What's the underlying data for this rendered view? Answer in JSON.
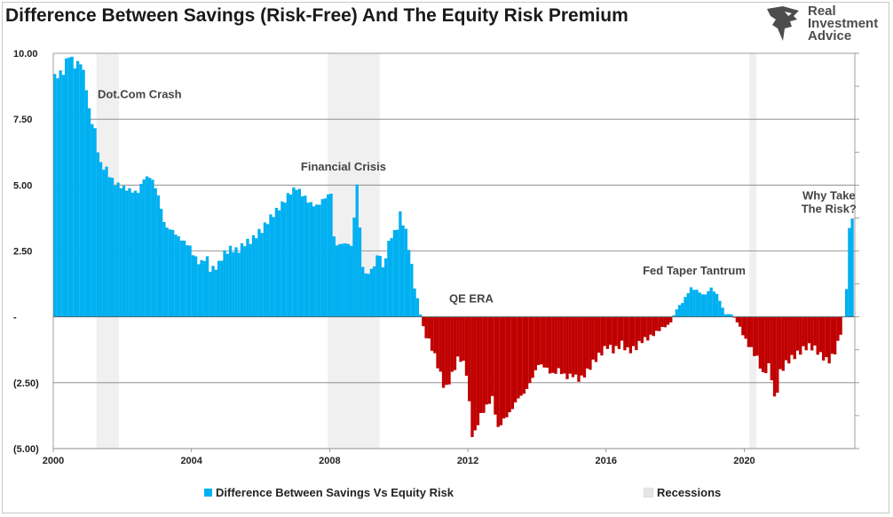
{
  "title": "Difference Between Savings (Risk-Free) And The Equity Risk Premium",
  "logo": {
    "lines": [
      "Real",
      "Investment",
      "Advice"
    ]
  },
  "colors": {
    "positive": "#00B0F0",
    "negative": "#C00000",
    "recession": "#e6e6e6",
    "gridline": "#7f7f7f"
  },
  "chart_data": {
    "type": "bar",
    "title": "Difference Between Savings (Risk-Free) And The Equity Risk Premium",
    "xlabel": "",
    "ylabel": "",
    "xlim": [
      2000.0,
      2023.2
    ],
    "ylim": [
      -5,
      10
    ],
    "y_ticks": [
      {
        "value": 10,
        "label": "10.00"
      },
      {
        "value": 7.5,
        "label": "7.50"
      },
      {
        "value": 5,
        "label": "5.00"
      },
      {
        "value": 2.5,
        "label": "2.50"
      },
      {
        "value": 0,
        "label": "-"
      },
      {
        "value": -2.5,
        "label": "(2.50)"
      },
      {
        "value": -5,
        "label": "(5.00)"
      }
    ],
    "x_ticks": [
      {
        "value": 2000,
        "label": "2000"
      },
      {
        "value": 2004,
        "label": "2004"
      },
      {
        "value": 2008,
        "label": "2008"
      },
      {
        "value": 2012,
        "label": "2012"
      },
      {
        "value": 2016,
        "label": "2016"
      },
      {
        "value": 2020,
        "label": "2020"
      }
    ],
    "grid": true,
    "legend_position": "bottom",
    "series": [
      {
        "name": "Difference Between Savings Vs Equity Risk",
        "points": [
          [
            2000.0,
            9.1
          ],
          [
            2000.25,
            9.3
          ],
          [
            2000.4,
            10.0
          ],
          [
            2000.6,
            9.5
          ],
          [
            2000.75,
            9.7
          ],
          [
            2000.9,
            8.9
          ],
          [
            2001.0,
            7.8
          ],
          [
            2001.2,
            6.9
          ],
          [
            2001.3,
            5.8
          ],
          [
            2001.5,
            5.6
          ],
          [
            2001.7,
            5.1
          ],
          [
            2002.0,
            4.9
          ],
          [
            2002.2,
            4.8
          ],
          [
            2002.4,
            4.7
          ],
          [
            2002.6,
            5.3
          ],
          [
            2002.8,
            5.3
          ],
          [
            2003.0,
            4.6
          ],
          [
            2003.2,
            3.4
          ],
          [
            2003.4,
            3.3
          ],
          [
            2003.6,
            3.0
          ],
          [
            2003.9,
            2.7
          ],
          [
            2004.0,
            2.4
          ],
          [
            2004.2,
            2.0
          ],
          [
            2004.4,
            2.3
          ],
          [
            2004.5,
            1.8
          ],
          [
            2004.7,
            1.9
          ],
          [
            2004.9,
            2.4
          ],
          [
            2005.1,
            2.6
          ],
          [
            2005.3,
            2.5
          ],
          [
            2005.5,
            2.8
          ],
          [
            2005.7,
            2.9
          ],
          [
            2005.9,
            3.2
          ],
          [
            2006.0,
            3.3
          ],
          [
            2006.2,
            3.7
          ],
          [
            2006.4,
            4.0
          ],
          [
            2006.6,
            4.3
          ],
          [
            2006.8,
            4.7
          ],
          [
            2007.0,
            4.9
          ],
          [
            2007.2,
            4.6
          ],
          [
            2007.4,
            4.3
          ],
          [
            2007.6,
            4.2
          ],
          [
            2007.8,
            4.5
          ],
          [
            2008.0,
            4.7
          ],
          [
            2008.1,
            2.7
          ],
          [
            2008.4,
            2.8
          ],
          [
            2008.6,
            2.7
          ],
          [
            2008.75,
            5.05
          ],
          [
            2008.9,
            2.0
          ],
          [
            2009.0,
            1.6
          ],
          [
            2009.2,
            1.8
          ],
          [
            2009.4,
            2.5
          ],
          [
            2009.5,
            1.8
          ],
          [
            2009.7,
            3.0
          ],
          [
            2009.9,
            3.3
          ],
          [
            2010.0,
            3.9
          ],
          [
            2010.2,
            3.1
          ],
          [
            2010.4,
            1.3
          ],
          [
            2010.55,
            0.3
          ],
          [
            2010.7,
            -0.6
          ],
          [
            2010.9,
            -1.1
          ],
          [
            2011.1,
            -1.9
          ],
          [
            2011.3,
            -2.8
          ],
          [
            2011.5,
            -2.2
          ],
          [
            2011.7,
            -1.5
          ],
          [
            2011.9,
            -1.9
          ],
          [
            2012.1,
            -4.7
          ],
          [
            2012.3,
            -3.8
          ],
          [
            2012.5,
            -3.4
          ],
          [
            2012.7,
            -3.0
          ],
          [
            2012.8,
            -4.3
          ],
          [
            2013.0,
            -3.9
          ],
          [
            2013.2,
            -3.6
          ],
          [
            2013.4,
            -3.1
          ],
          [
            2013.6,
            -2.9
          ],
          [
            2013.8,
            -2.4
          ],
          [
            2014.0,
            -1.8
          ],
          [
            2014.2,
            -1.9
          ],
          [
            2014.4,
            -2.2
          ],
          [
            2014.6,
            -2.0
          ],
          [
            2014.8,
            -2.3
          ],
          [
            2015.0,
            -2.2
          ],
          [
            2015.2,
            -2.4
          ],
          [
            2015.4,
            -2.1
          ],
          [
            2015.6,
            -1.7
          ],
          [
            2015.8,
            -1.4
          ],
          [
            2016.0,
            -1.1
          ],
          [
            2016.2,
            -1.3
          ],
          [
            2016.4,
            -1.0
          ],
          [
            2016.6,
            -1.3
          ],
          [
            2016.8,
            -1.2
          ],
          [
            2017.0,
            -0.9
          ],
          [
            2017.2,
            -0.8
          ],
          [
            2017.4,
            -0.6
          ],
          [
            2017.6,
            -0.4
          ],
          [
            2017.8,
            -0.3
          ],
          [
            2018.0,
            0.3
          ],
          [
            2018.2,
            0.6
          ],
          [
            2018.4,
            1.1
          ],
          [
            2018.6,
            1.0
          ],
          [
            2018.8,
            0.8
          ],
          [
            2019.0,
            1.1
          ],
          [
            2019.2,
            0.8
          ],
          [
            2019.4,
            0.1
          ],
          [
            2019.6,
            0.1
          ],
          [
            2019.8,
            -0.3
          ],
          [
            2020.0,
            -0.9
          ],
          [
            2020.2,
            -1.3
          ],
          [
            2020.35,
            -1.6
          ],
          [
            2020.5,
            -2.2
          ],
          [
            2020.7,
            -1.8
          ],
          [
            2020.85,
            -3.3
          ],
          [
            2021.0,
            -2.1
          ],
          [
            2021.2,
            -1.7
          ],
          [
            2021.4,
            -1.5
          ],
          [
            2021.6,
            -1.3
          ],
          [
            2021.8,
            -1.1
          ],
          [
            2022.0,
            -1.2
          ],
          [
            2022.2,
            -1.5
          ],
          [
            2022.4,
            -1.7
          ],
          [
            2022.6,
            -1.3
          ],
          [
            2022.8,
            -0.4
          ],
          [
            2022.9,
            0.8
          ],
          [
            2022.95,
            1.8
          ],
          [
            2023.0,
            3.3
          ],
          [
            2023.1,
            3.9
          ]
        ]
      },
      {
        "name": "Recessions",
        "periods": [
          [
            2001.25,
            2001.9
          ],
          [
            2007.95,
            2009.45
          ],
          [
            2020.15,
            2020.35
          ]
        ]
      }
    ],
    "annotations": [
      {
        "text": "Dot.Com Crash",
        "x": 2002.5,
        "y": 8.3
      },
      {
        "text": "Financial Crisis",
        "x": 2008.4,
        "y": 5.55
      },
      {
        "text": "QE ERA",
        "x": 2012.1,
        "y": 0.55
      },
      {
        "text": "Fed Taper Tantrum",
        "x": 2018.55,
        "y": 1.6
      },
      {
        "text": "Why Take",
        "x": 2022.45,
        "y": 4.45
      },
      {
        "text": "The Risk?",
        "x": 2022.45,
        "y": 3.95
      }
    ]
  }
}
